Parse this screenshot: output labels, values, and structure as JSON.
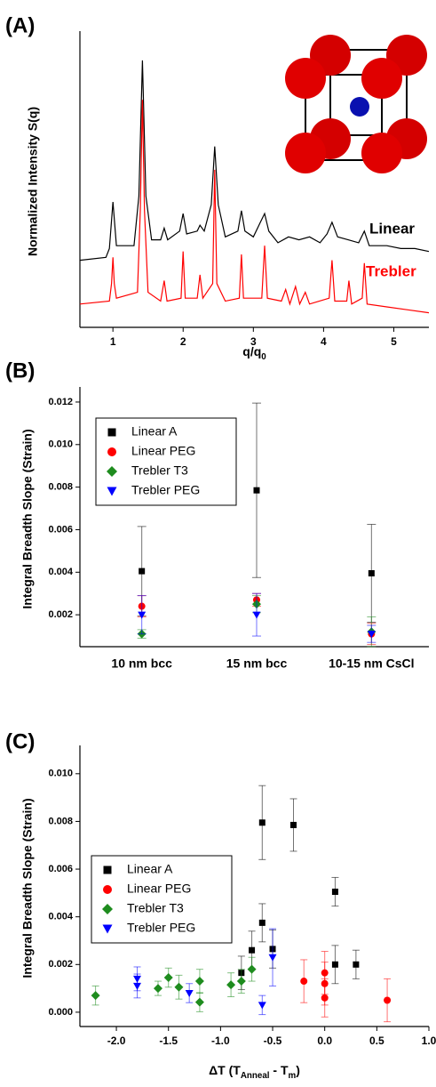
{
  "chart_data": [
    {
      "type": "line",
      "panel_label": "(A)",
      "ylabel": "Normalized Intensity S(q)",
      "xlabel": [
        "q/q",
        "0"
      ],
      "xlim": [
        0.53,
        5.5
      ],
      "xticks": [
        1,
        2,
        3,
        4,
        5
      ],
      "ylim": [
        0,
        1
      ],
      "annotations": [
        {
          "text": "Linear",
          "color": "#000000"
        },
        {
          "text": "Trebler",
          "color": "#ff0000"
        }
      ],
      "series": [
        {
          "name": "Linear",
          "color": "#000000",
          "x": [
            0.53,
            0.9,
            0.95,
            1.0,
            1.05,
            1.3,
            1.37,
            1.42,
            1.47,
            1.55,
            1.68,
            1.73,
            1.78,
            1.95,
            2.0,
            2.05,
            2.2,
            2.24,
            2.3,
            2.4,
            2.45,
            2.5,
            2.6,
            2.78,
            2.83,
            2.88,
            3.0,
            3.1,
            3.16,
            3.22,
            3.35,
            3.5,
            3.65,
            3.8,
            3.95,
            4.05,
            4.12,
            4.2,
            4.35,
            4.5,
            4.58,
            4.65,
            4.9,
            5.1,
            5.3,
            5.5
          ],
          "values": [
            0.23,
            0.24,
            0.27,
            0.43,
            0.28,
            0.28,
            0.45,
            0.915,
            0.45,
            0.3,
            0.3,
            0.34,
            0.3,
            0.33,
            0.39,
            0.32,
            0.33,
            0.35,
            0.33,
            0.42,
            0.62,
            0.42,
            0.31,
            0.33,
            0.4,
            0.33,
            0.31,
            0.36,
            0.39,
            0.33,
            0.29,
            0.31,
            0.3,
            0.31,
            0.29,
            0.32,
            0.36,
            0.31,
            0.3,
            0.29,
            0.33,
            0.28,
            0.28,
            0.27,
            0.27,
            0.26
          ]
        },
        {
          "name": "Trebler",
          "color": "#ff0000",
          "x": [
            0.53,
            0.95,
            0.98,
            1.0,
            1.02,
            1.05,
            1.35,
            1.39,
            1.42,
            1.45,
            1.5,
            1.68,
            1.73,
            1.77,
            1.97,
            2.0,
            2.03,
            2.2,
            2.24,
            2.28,
            2.42,
            2.45,
            2.48,
            2.6,
            2.8,
            2.83,
            2.86,
            3.12,
            3.16,
            3.2,
            3.4,
            3.46,
            3.52,
            3.6,
            3.66,
            3.74,
            3.8,
            4.08,
            4.12,
            4.16,
            4.33,
            4.36,
            4.4,
            4.55,
            4.58,
            4.62,
            4.9,
            5.2,
            5.5
          ],
          "values": [
            0.08,
            0.09,
            0.15,
            0.24,
            0.15,
            0.1,
            0.12,
            0.4,
            0.78,
            0.4,
            0.12,
            0.09,
            0.16,
            0.09,
            0.1,
            0.26,
            0.1,
            0.1,
            0.18,
            0.1,
            0.15,
            0.54,
            0.15,
            0.09,
            0.1,
            0.25,
            0.1,
            0.1,
            0.28,
            0.1,
            0.09,
            0.13,
            0.08,
            0.14,
            0.08,
            0.12,
            0.08,
            0.1,
            0.23,
            0.09,
            0.09,
            0.16,
            0.08,
            0.1,
            0.22,
            0.08,
            0.07,
            0.06,
            0.05
          ]
        }
      ]
    },
    {
      "type": "errorbar",
      "panel_label": "(B)",
      "ylabel": "Integral Breadth Slope (Strain)",
      "categories": [
        "10 nm bcc",
        "15 nm bcc",
        "10-15 nm CsCl"
      ],
      "ylim": [
        0.0005,
        0.0125
      ],
      "yticks": [
        0.002,
        0.004,
        0.006,
        0.008,
        {
          "value": 0.01,
          "label": "0.010"
        },
        0.012
      ],
      "legend": "upper left",
      "series": [
        {
          "name": "Linear A",
          "color": "#000000",
          "marker": "square",
          "values": [
            0.00405,
            0.00785,
            0.00395
          ],
          "errors": [
            0.0021,
            0.0041,
            0.0023
          ]
        },
        {
          "name": "Linear PEG",
          "color": "#ff0000",
          "marker": "circle",
          "values": [
            0.0024,
            0.0027,
            0.0011
          ],
          "errors": [
            0.0005,
            0.0003,
            0.0005
          ]
        },
        {
          "name": "Trebler T3",
          "color": "#1e8c1e",
          "marker": "diamond",
          "values": [
            0.0011,
            0.0025,
            0.0012
          ],
          "errors": [
            0.0002,
            0.0004,
            0.0007
          ]
        },
        {
          "name": "Trebler PEG",
          "color": "#0000ff",
          "marker": "triangle-down",
          "values": [
            0.002,
            0.002,
            0.0011
          ],
          "errors": [
            0.0009,
            0.001,
            0.0004
          ]
        }
      ]
    },
    {
      "type": "scatter",
      "panel_label": "(C)",
      "ylabel": "Integral Breadth Slope (Strain)",
      "xlabel": [
        "ΔT (T",
        "Anneal",
        " - T",
        "m",
        ")"
      ],
      "xlim": [
        -2.35,
        1.0
      ],
      "ylim": [
        -0.0006,
        0.011
      ],
      "xticks": [
        {
          "value": -2,
          "label": "-2.0"
        },
        -1.5,
        {
          "value": -1,
          "label": "-1.0"
        },
        -0.5,
        {
          "value": 0,
          "label": "0.0"
        },
        0.5,
        {
          "value": 1,
          "label": "1.0"
        }
      ],
      "yticks": [
        {
          "value": 0,
          "label": "0.000"
        },
        0.002,
        0.004,
        0.006,
        0.008,
        {
          "value": 0.01,
          "label": "0.010"
        }
      ],
      "legend": "center left",
      "series": [
        {
          "name": "Linear A",
          "color": "#000000",
          "marker": "square",
          "x": [
            -0.6,
            -0.3,
            0.1,
            -0.6,
            -0.7,
            -0.5,
            -0.8,
            0.1,
            0.3
          ],
          "values": [
            0.00795,
            0.00785,
            0.00505,
            0.00375,
            0.0026,
            0.00265,
            0.00165,
            0.002,
            0.002
          ],
          "errors": [
            0.00155,
            0.0011,
            0.0006,
            0.0008,
            0.0008,
            0.0008,
            0.0007,
            0.0008,
            0.0006
          ]
        },
        {
          "name": "Linear PEG",
          "color": "#ff0000",
          "marker": "circle",
          "x": [
            -0.2,
            0.0,
            0.0,
            0.0,
            0.6
          ],
          "values": [
            0.0013,
            0.00165,
            0.0012,
            0.0006,
            0.0005
          ],
          "errors": [
            0.0009,
            0.0009,
            0.0009,
            0.0008,
            0.0009
          ]
        },
        {
          "name": "Trebler T3",
          "color": "#1e8c1e",
          "marker": "diamond",
          "x": [
            -2.2,
            -1.6,
            -1.5,
            -1.4,
            -1.2,
            -1.2,
            -0.9,
            -0.8,
            -0.7
          ],
          "values": [
            0.0007,
            0.001,
            0.00145,
            0.00105,
            0.0013,
            0.00042,
            0.00115,
            0.0013,
            0.0018
          ],
          "errors": [
            0.0004,
            0.0003,
            0.0004,
            0.0005,
            0.0005,
            0.0004,
            0.0005,
            0.0005,
            0.0005
          ]
        },
        {
          "name": "Trebler PEG",
          "color": "#0000ff",
          "marker": "triangle-down",
          "x": [
            -1.8,
            -1.8,
            -1.3,
            -0.6,
            -0.5
          ],
          "values": [
            0.0014,
            0.0011,
            0.0008,
            0.0003,
            0.0023
          ],
          "errors": [
            0.0005,
            0.0005,
            0.0004,
            0.0004,
            0.0012
          ]
        }
      ]
    }
  ]
}
